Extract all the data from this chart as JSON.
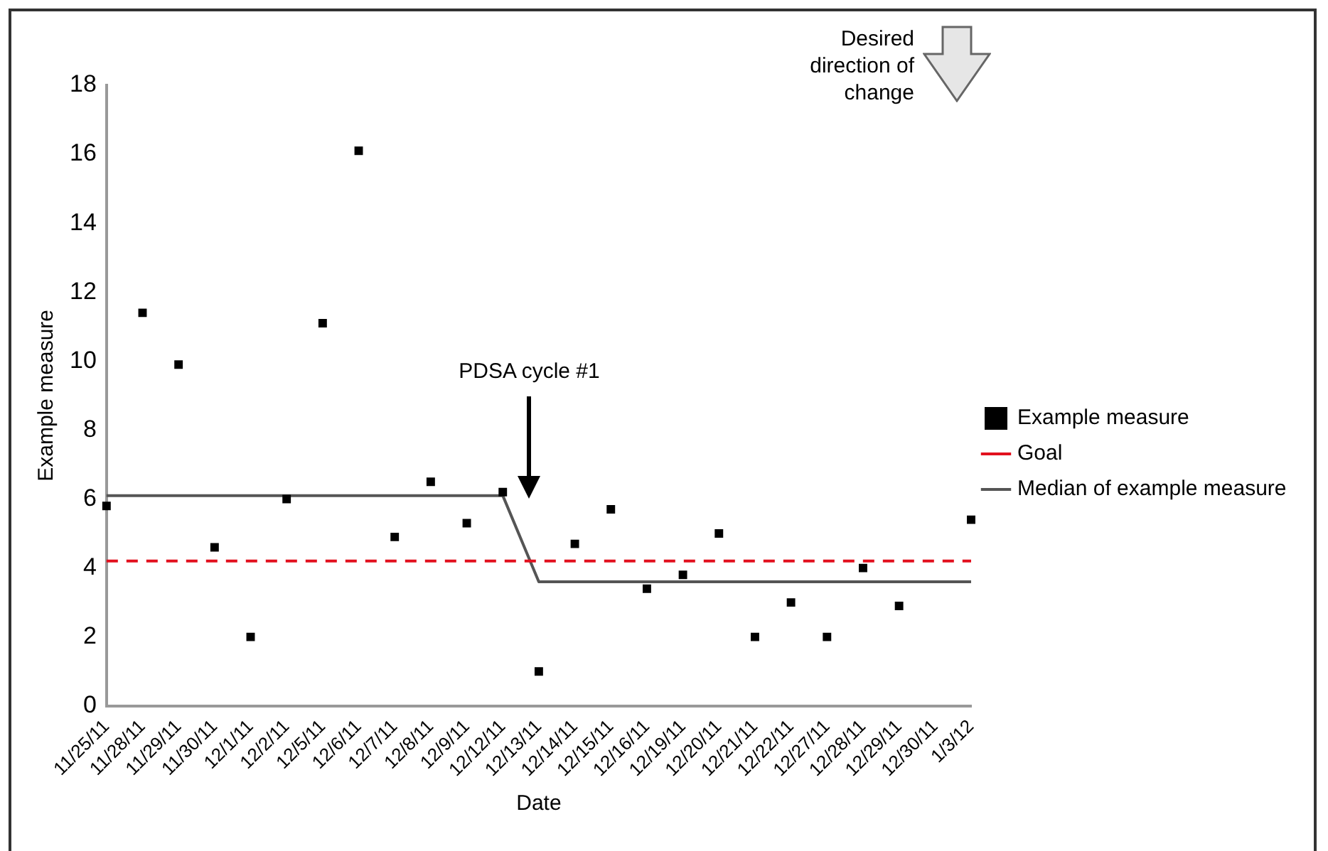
{
  "chart_data": {
    "type": "scatter",
    "xlabel": "Date",
    "ylabel": "Example measure",
    "categories": [
      "11/25/11",
      "11/28/11",
      "11/29/11",
      "11/30/11",
      "12/1/11",
      "12/2/11",
      "12/5/11",
      "12/6/11",
      "12/7/11",
      "12/8/11",
      "12/9/11",
      "12/12/11",
      "12/13/11",
      "12/14/11",
      "12/15/11",
      "12/16/11",
      "12/19/11",
      "12/20/11",
      "12/21/11",
      "12/22/11",
      "12/27/11",
      "12/28/11",
      "12/29/11",
      "12/30/11",
      "1/3/12"
    ],
    "ylim": [
      0,
      18
    ],
    "yticks": [
      0,
      2,
      4,
      6,
      8,
      10,
      12,
      14,
      16,
      18
    ],
    "grid": false,
    "legend": "right",
    "annotations": [
      "PDSA cycle #1",
      "Desired direction of change"
    ],
    "series": [
      {
        "name": "Example measure",
        "color": "#000000",
        "marker": "square",
        "values": [
          5.8,
          11.4,
          9.9,
          4.6,
          2.0,
          6.0,
          11.1,
          16.1,
          4.9,
          6.5,
          5.3,
          6.2,
          1.0,
          4.7,
          5.7,
          3.4,
          3.8,
          5.0,
          2.0,
          3.0,
          2.0,
          4.0,
          2.9,
          null,
          5.4
        ]
      },
      {
        "name": "Goal",
        "color": "#e2101e",
        "type": "line",
        "line_style": "dashed",
        "values": [
          4.2,
          4.2,
          4.2,
          4.2,
          4.2,
          4.2,
          4.2,
          4.2,
          4.2,
          4.2,
          4.2,
          4.2,
          4.2,
          4.2,
          4.2,
          4.2,
          4.2,
          4.2,
          4.2,
          4.2,
          4.2,
          4.2,
          4.2,
          4.2,
          4.2
        ]
      },
      {
        "name": "Median of example measure",
        "color": "#555555",
        "type": "line",
        "line_style": "solid",
        "values": [
          6.1,
          6.1,
          6.1,
          6.1,
          6.1,
          6.1,
          6.1,
          6.1,
          6.1,
          6.1,
          6.1,
          6.1,
          3.6,
          3.6,
          3.6,
          3.6,
          3.6,
          3.6,
          3.6,
          3.6,
          3.6,
          3.6,
          3.6,
          3.6,
          3.6
        ]
      }
    ]
  }
}
